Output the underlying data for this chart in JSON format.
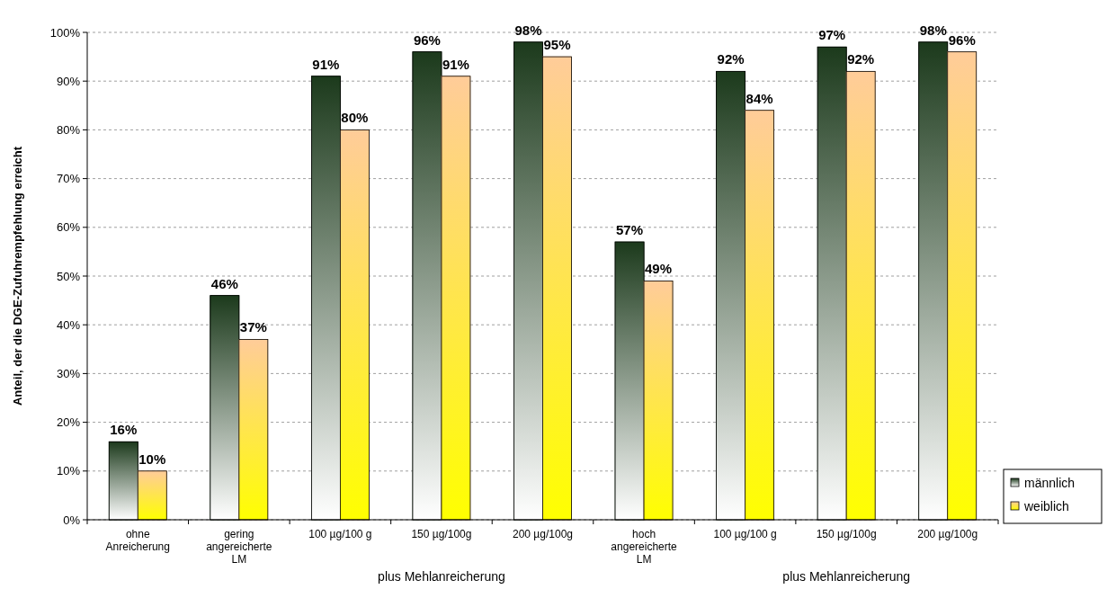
{
  "chart_data": {
    "type": "bar",
    "ylabel": "Anteil, der die DGE-Zufuhrempfehlung erreicht",
    "categories": [
      "ohne Anreicherung",
      "gering angereicherte LM",
      "100 µg/100 g",
      "150 µg/100g",
      "200 µg/100g",
      "hoch angereicherte LM",
      "100 µg/100 g",
      "150 µg/100g",
      "200 µg/100g"
    ],
    "series": [
      {
        "name": "männlich",
        "color": "#1c3a1c",
        "values": [
          16,
          46,
          91,
          96,
          98,
          57,
          92,
          97,
          98
        ]
      },
      {
        "name": "weiblich",
        "color": "#ffcc99",
        "values": [
          10,
          37,
          80,
          91,
          95,
          49,
          84,
          92,
          96
        ]
      }
    ],
    "value_labels": [
      [
        "16%",
        "46%",
        "91%",
        "96%",
        "98%",
        "57%",
        "92%",
        "97%",
        "98%"
      ],
      [
        "10%",
        "37%",
        "80%",
        "91%",
        "95%",
        "49%",
        "84%",
        "92%",
        "96%"
      ]
    ],
    "ylim": [
      0,
      100
    ],
    "yticks": [
      {
        "value": 0,
        "label": "0%"
      },
      {
        "value": 10,
        "label": "10%"
      },
      {
        "value": 20,
        "label": "20%"
      },
      {
        "value": 30,
        "label": "30%"
      },
      {
        "value": 40,
        "label": "40%"
      },
      {
        "value": 50,
        "label": "50%"
      },
      {
        "value": 60,
        "label": "60%"
      },
      {
        "value": 70,
        "label": "70%"
      },
      {
        "value": 80,
        "label": "80%"
      },
      {
        "value": 90,
        "label": "90%"
      },
      {
        "value": 100,
        "label": "100%"
      }
    ],
    "grid": "y",
    "legend": "right",
    "annotations": [
      "plus Mehlanreicherung",
      "plus Mehlanreicherung"
    ]
  }
}
